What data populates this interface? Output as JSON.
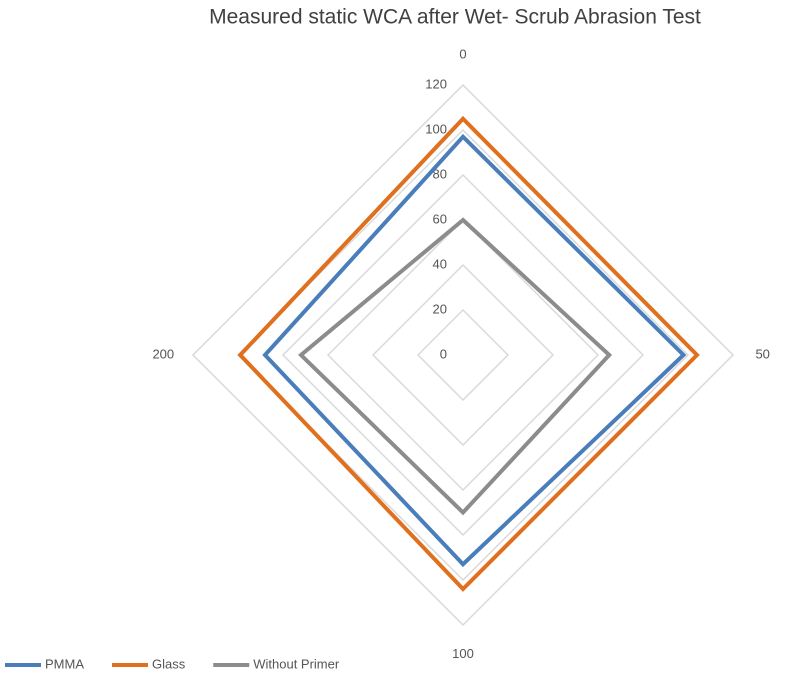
{
  "chart_data": {
    "type": "radar",
    "title": "Measured static WCA after Wet- Scrub Abrasion Test",
    "categories": [
      "0",
      "50",
      "100",
      "200"
    ],
    "series": [
      {
        "name": "PMMA",
        "color": "#4a7ebb",
        "values": [
          97,
          98,
          93,
          88
        ]
      },
      {
        "name": "Glass",
        "color": "#e0701e",
        "values": [
          105,
          104,
          104,
          99
        ]
      },
      {
        "name": "Without Primer",
        "color": "#8c8c8c",
        "values": [
          60,
          65,
          70,
          72
        ]
      }
    ],
    "ylim": [
      0,
      120
    ],
    "yticks": [
      0,
      20,
      40,
      60,
      80,
      100,
      120
    ],
    "grid": true,
    "legend": "bottom"
  }
}
